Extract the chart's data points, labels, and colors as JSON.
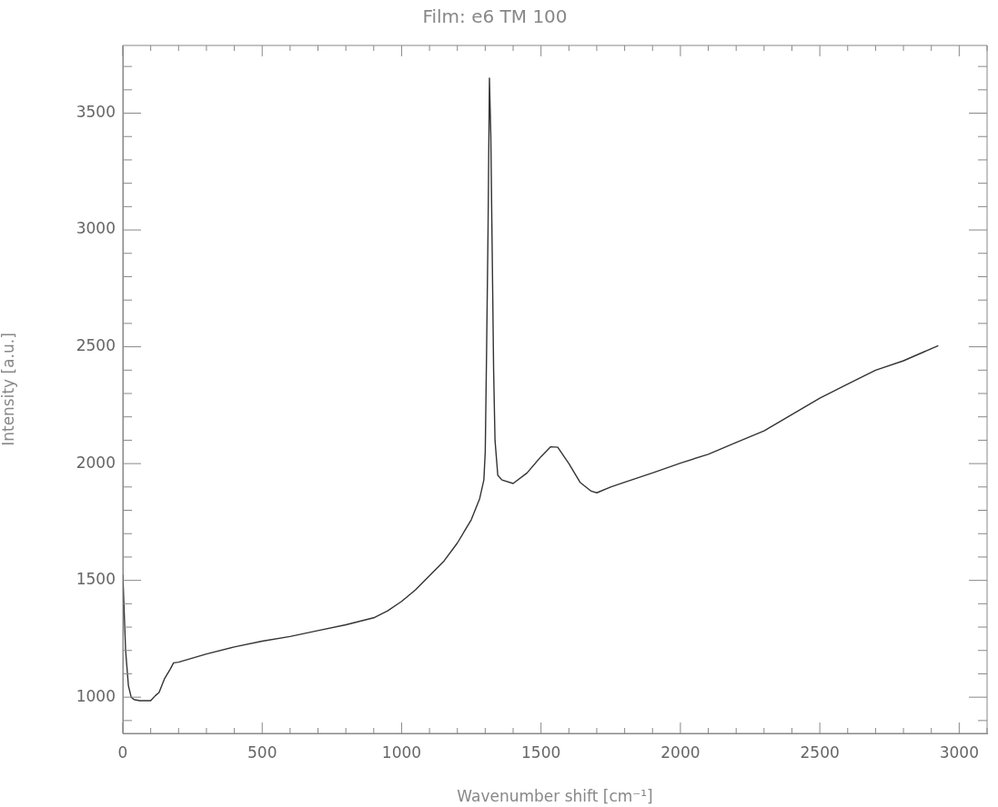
{
  "chart_data": {
    "type": "line",
    "title": "Film: e6 TM 100",
    "xlabel": "Wavenumber shift [cm⁻¹]",
    "ylabel": "Intensity [a.u.]",
    "xlim": [
      0,
      3100
    ],
    "ylim": [
      845,
      3790
    ],
    "xticks": [
      0,
      {
        "value": 100,
        "label": null
      },
      {
        "value": 200,
        "label": null
      },
      {
        "value": 300,
        "label": null
      },
      {
        "value": 400,
        "label": null
      },
      500,
      {
        "value": 600,
        "label": null
      },
      {
        "value": 700,
        "label": null
      },
      {
        "value": 800,
        "label": null
      },
      {
        "value": 900,
        "label": null
      },
      1000,
      {
        "value": 1100,
        "label": null
      },
      {
        "value": 1200,
        "label": null
      },
      {
        "value": 1300,
        "label": null
      },
      {
        "value": 1400,
        "label": null
      },
      1500,
      {
        "value": 1600,
        "label": null
      },
      {
        "value": 1700,
        "label": null
      },
      {
        "value": 1800,
        "label": null
      },
      {
        "value": 1900,
        "label": null
      },
      2000,
      {
        "value": 2100,
        "label": null
      },
      {
        "value": 2200,
        "label": null
      },
      {
        "value": 2300,
        "label": null
      },
      {
        "value": 2400,
        "label": null
      },
      2500,
      {
        "value": 2600,
        "label": null
      },
      {
        "value": 2700,
        "label": null
      },
      {
        "value": 2800,
        "label": null
      },
      {
        "value": 2900,
        "label": null
      },
      3000,
      {
        "value": 3100,
        "label": null
      }
    ],
    "yticks": [
      {
        "value": 900,
        "label": null
      },
      1000,
      {
        "value": 1100,
        "label": null
      },
      {
        "value": 1200,
        "label": null
      },
      {
        "value": 1300,
        "label": null
      },
      {
        "value": 1400,
        "label": null
      },
      1500,
      {
        "value": 1600,
        "label": null
      },
      {
        "value": 1700,
        "label": null
      },
      {
        "value": 1800,
        "label": null
      },
      {
        "value": 1900,
        "label": null
      },
      2000,
      {
        "value": 2100,
        "label": null
      },
      {
        "value": 2200,
        "label": null
      },
      {
        "value": 2300,
        "label": null
      },
      {
        "value": 2400,
        "label": null
      },
      2500,
      {
        "value": 2600,
        "label": null
      },
      {
        "value": 2700,
        "label": null
      },
      {
        "value": 2800,
        "label": null
      },
      {
        "value": 2900,
        "label": null
      },
      3000,
      {
        "value": 3100,
        "label": null
      },
      {
        "value": 3200,
        "label": null
      },
      {
        "value": 3300,
        "label": null
      },
      {
        "value": 3400,
        "label": null
      },
      3500,
      {
        "value": 3600,
        "label": null
      },
      {
        "value": 3700,
        "label": null
      }
    ],
    "grid": false,
    "legend": false,
    "marker": "none",
    "line_style": "solid",
    "series": [
      {
        "color": "#333333",
        "x": [
          0,
          10,
          20,
          30,
          40,
          60,
          100,
          117,
          130,
          150,
          170,
          182,
          200,
          300,
          400,
          500,
          600,
          700,
          800,
          900,
          950,
          1000,
          1050,
          1100,
          1150,
          1200,
          1250,
          1280,
          1295,
          1300,
          1305,
          1310,
          1315,
          1320,
          1325,
          1330,
          1335,
          1345,
          1360,
          1400,
          1450,
          1500,
          1535,
          1560,
          1600,
          1640,
          1680,
          1700,
          1750,
          1800,
          1900,
          2000,
          2100,
          2200,
          2300,
          2400,
          2500,
          2600,
          2700,
          2800,
          2925
        ],
        "values": [
          1525,
          1200,
          1050,
          1000,
          990,
          985,
          985,
          1007,
          1020,
          1080,
          1120,
          1147,
          1150,
          1185,
          1215,
          1240,
          1260,
          1285,
          1310,
          1340,
          1370,
          1410,
          1460,
          1520,
          1580,
          1660,
          1760,
          1850,
          1930,
          2050,
          2500,
          3000,
          3650,
          3400,
          2900,
          2400,
          2100,
          1950,
          1930,
          1915,
          1960,
          2030,
          2072,
          2070,
          2000,
          1920,
          1882,
          1875,
          1900,
          1920,
          1960,
          2002,
          2040,
          2090,
          2140,
          2210,
          2280,
          2340,
          2400,
          2440,
          2505
        ]
      }
    ]
  }
}
